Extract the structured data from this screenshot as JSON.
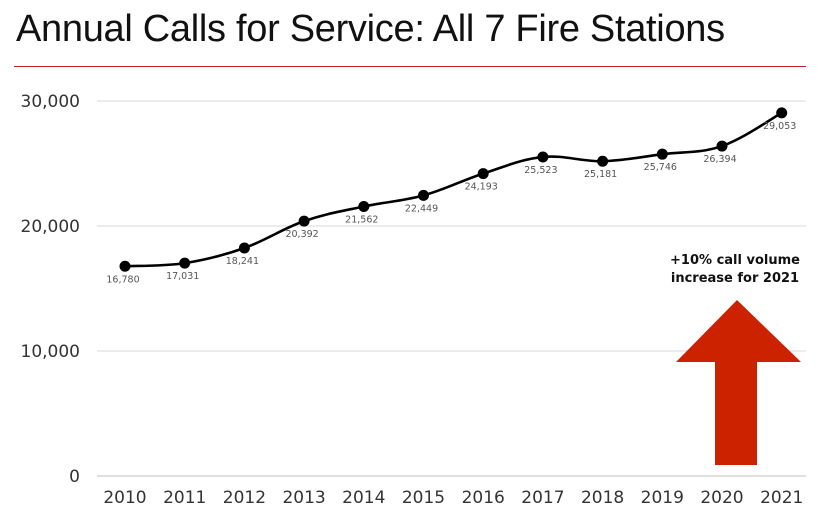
{
  "title": "Annual Calls for Service: All 7 Fire Stations",
  "annotation": {
    "line1": "+10% call volume",
    "line2": "increase for 2021",
    "arrow_color": "#cc2200"
  },
  "colors": {
    "title_rule": "#c0202a",
    "line": "#000000",
    "grid": "#d9d9d9"
  },
  "chart_data": {
    "type": "line",
    "title": "Annual Calls for Service: All 7 Fire Stations",
    "xlabel": "",
    "ylabel": "",
    "categories": [
      "2010",
      "2011",
      "2012",
      "2013",
      "2014",
      "2015",
      "2016",
      "2017",
      "2018",
      "2019",
      "2020",
      "2021"
    ],
    "values": [
      16780,
      17031,
      18241,
      20392,
      21562,
      22449,
      24193,
      25523,
      25181,
      25746,
      26394,
      29053
    ],
    "data_labels": [
      "16,780",
      "17,031",
      "18,241",
      "20,392",
      "21,562",
      "22,449",
      "24,193",
      "25,523",
      "25,181",
      "25,746",
      "26,394",
      "29,053"
    ],
    "yticks": [
      0,
      10000,
      20000,
      30000
    ],
    "ytick_labels": [
      "0",
      "10,000",
      "20,000",
      "30,000"
    ],
    "ylim": [
      0,
      30000
    ],
    "grid": true,
    "legend": null,
    "annotations": [
      "+10% call volume increase for 2021"
    ]
  }
}
